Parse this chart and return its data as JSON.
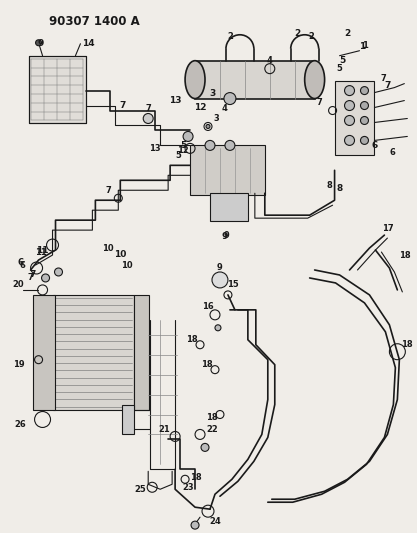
{
  "title": "90307 1400 A",
  "bg_color": "#f0ede8",
  "line_color": "#1a1a1a",
  "title_fontsize": 8.5,
  "label_fontsize": 6.5,
  "fig_width": 4.17,
  "fig_height": 5.33,
  "dpi": 100
}
